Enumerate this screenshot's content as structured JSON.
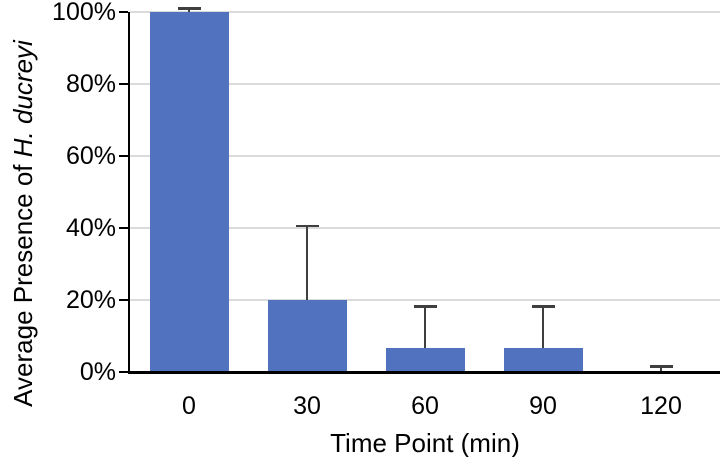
{
  "chart_data": {
    "type": "bar",
    "title": "",
    "xlabel": "Time Point (min)",
    "ylabel": "Average Presence of H. ducreyi",
    "ylabel_prefix": "Average Presence of ",
    "ylabel_italic": "H. ducreyi",
    "categories": [
      "0",
      "30",
      "60",
      "90",
      "120"
    ],
    "values": [
      100,
      20,
      6.7,
      6.7,
      0
    ],
    "error_plus": [
      1,
      20.5,
      11.5,
      11.5,
      1.5
    ],
    "ylim": [
      0,
      100
    ],
    "ytick_step": 20,
    "ytick_labels": [
      "0%",
      "20%",
      "40%",
      "60%",
      "80%",
      "100%"
    ],
    "grid": "horizontal",
    "legend": "none",
    "bar_color": "#5172BF",
    "error_bar_color": "#3F3F3F",
    "gridline_color": "#DBDBDB",
    "axis_color": "#000000",
    "text_color": "#000000"
  }
}
